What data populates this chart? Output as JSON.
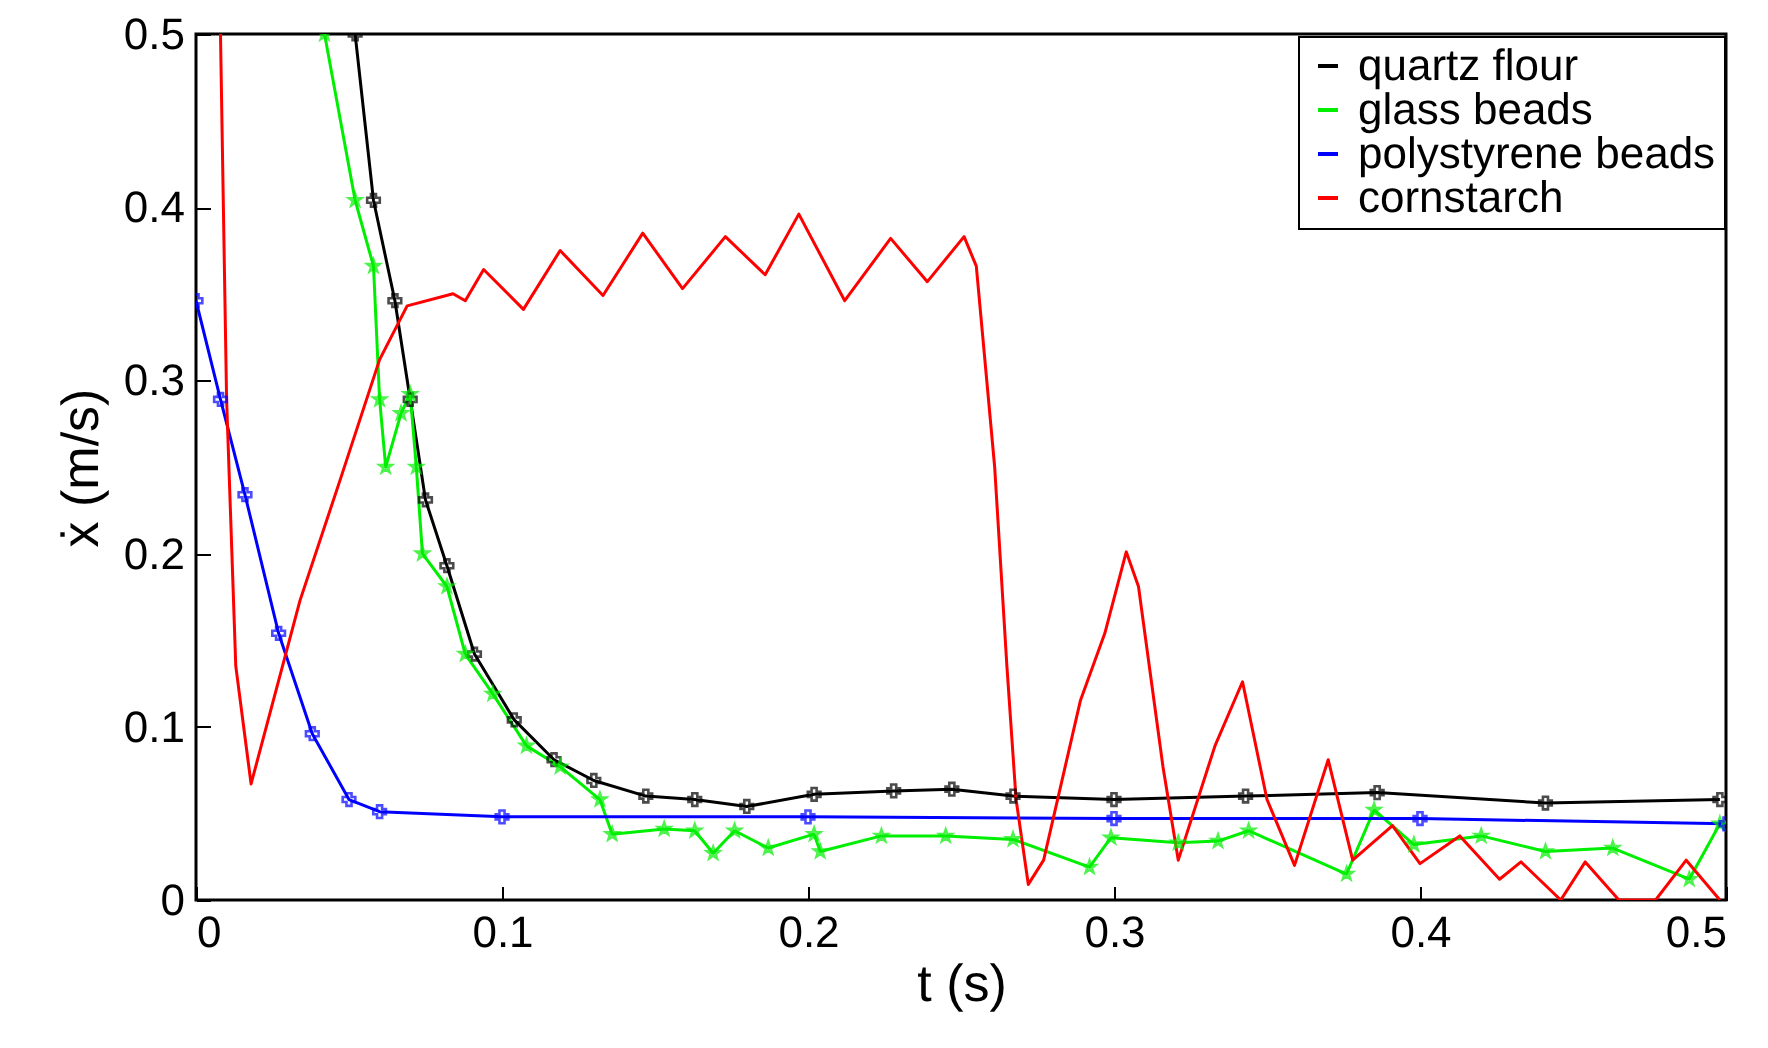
{
  "chart_data": {
    "type": "line",
    "xlabel": "t (s)",
    "ylabel": "ẋ (m/s)",
    "xlim": [
      0,
      0.5
    ],
    "ylim": [
      0,
      0.5
    ],
    "xticks": [
      0,
      0.1,
      0.2,
      0.3,
      0.4,
      0.5
    ],
    "yticks": [
      0,
      0.1,
      0.2,
      0.3,
      0.4,
      0.5
    ],
    "grid": false,
    "legend": "top right",
    "series": [
      {
        "name": "quartz flour",
        "color": "#000000",
        "marker": "cross",
        "x": [
          0.052,
          0.058,
          0.065,
          0.07,
          0.075,
          0.082,
          0.091,
          0.104,
          0.117,
          0.13,
          0.147,
          0.163,
          0.18,
          0.202,
          0.228,
          0.247,
          0.267,
          0.3,
          0.343,
          0.386,
          0.441,
          0.498
        ],
        "values": [
          0.5,
          0.404,
          0.346,
          0.289,
          0.231,
          0.193,
          0.142,
          0.104,
          0.081,
          0.069,
          0.06,
          0.058,
          0.054,
          0.061,
          0.063,
          0.064,
          0.06,
          0.058,
          0.06,
          0.062,
          0.056,
          0.058
        ]
      },
      {
        "name": "glass beads",
        "color": "#00ee00",
        "marker": "star",
        "x": [
          0.042,
          0.052,
          0.058,
          0.06,
          0.062,
          0.067,
          0.07,
          0.072,
          0.074,
          0.082,
          0.088,
          0.097,
          0.108,
          0.119,
          0.132,
          0.136,
          0.153,
          0.163,
          0.169,
          0.176,
          0.187,
          0.202,
          0.204,
          0.224,
          0.245,
          0.267,
          0.292,
          0.299,
          0.321,
          0.334,
          0.344,
          0.376,
          0.385,
          0.398,
          0.42,
          0.441,
          0.463,
          0.488,
          0.498
        ],
        "values": [
          0.5,
          0.404,
          0.366,
          0.289,
          0.25,
          0.281,
          0.292,
          0.25,
          0.2,
          0.181,
          0.142,
          0.119,
          0.089,
          0.077,
          0.058,
          0.038,
          0.041,
          0.04,
          0.027,
          0.04,
          0.03,
          0.038,
          0.028,
          0.037,
          0.037,
          0.035,
          0.019,
          0.036,
          0.033,
          0.034,
          0.04,
          0.015,
          0.052,
          0.032,
          0.037,
          0.028,
          0.03,
          0.012,
          0.044
        ]
      },
      {
        "name": "polystyrene beads",
        "color": "#0000ff",
        "marker": "cross",
        "x": [
          0,
          0.008,
          0.016,
          0.027,
          0.038,
          0.05,
          0.06,
          0.1,
          0.2,
          0.3,
          0.4,
          0.5
        ],
        "values": [
          0.346,
          0.289,
          0.234,
          0.154,
          0.096,
          0.058,
          0.051,
          0.048,
          0.048,
          0.047,
          0.047,
          0.044
        ]
      },
      {
        "name": "cornstarch",
        "color": "#ff0000",
        "marker": "none",
        "x": [
          0.008,
          0.01,
          0.013,
          0.018,
          0.034,
          0.047,
          0.06,
          0.069,
          0.084,
          0.088,
          0.094,
          0.107,
          0.119,
          0.133,
          0.146,
          0.159,
          0.173,
          0.186,
          0.197,
          0.212,
          0.227,
          0.239,
          0.251,
          0.255,
          0.261,
          0.265,
          0.268,
          0.272,
          0.277,
          0.289,
          0.297,
          0.304,
          0.308,
          0.316,
          0.321,
          0.333,
          0.342,
          0.35,
          0.359,
          0.37,
          0.378,
          0.391,
          0.4,
          0.413,
          0.426,
          0.433,
          0.446,
          0.454,
          0.465,
          0.477,
          0.487,
          0.498
        ],
        "values": [
          0.5,
          0.289,
          0.135,
          0.067,
          0.173,
          0.242,
          0.312,
          0.343,
          0.35,
          0.346,
          0.364,
          0.341,
          0.375,
          0.349,
          0.385,
          0.353,
          0.383,
          0.361,
          0.396,
          0.346,
          0.382,
          0.357,
          0.383,
          0.366,
          0.25,
          0.135,
          0.058,
          0.009,
          0.023,
          0.115,
          0.154,
          0.201,
          0.181,
          0.077,
          0.023,
          0.089,
          0.126,
          0.058,
          0.02,
          0.081,
          0.023,
          0.043,
          0.021,
          0.037,
          0.012,
          0.022,
          0,
          0.022,
          0,
          0,
          0.023,
          0
        ]
      }
    ]
  }
}
